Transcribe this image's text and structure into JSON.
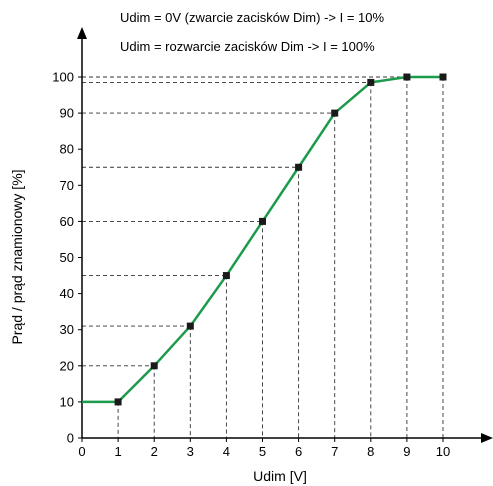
{
  "chart_data": {
    "type": "line",
    "xlabel": "Udim [V]",
    "ylabel": "Prąd / prąd znamionowy [%]",
    "annotations": [
      "Udim = 0V (zwarcie zacisków Dim) -> I = 10%",
      "Udim = rozwarcie zacisków Dim -> I = 100%"
    ],
    "xlim": [
      0,
      10
    ],
    "ylim": [
      0,
      100
    ],
    "x_ticks": [
      "0",
      "1",
      "2",
      "3",
      "4",
      "5",
      "6",
      "7",
      "8",
      "9",
      "10"
    ],
    "y_ticks": [
      "0",
      "10",
      "20",
      "30",
      "40",
      "50",
      "60",
      "70",
      "80",
      "90",
      "100"
    ],
    "grid": false,
    "series": [
      {
        "line_color": "#1e9a4c",
        "marker_color": "#1a1a1a",
        "x": [
          0,
          1,
          2,
          3,
          4,
          5,
          6,
          7,
          8,
          9,
          10
        ],
        "y": [
          10,
          10,
          20,
          31,
          45,
          60,
          75,
          90,
          98.5,
          100,
          100
        ]
      }
    ]
  }
}
